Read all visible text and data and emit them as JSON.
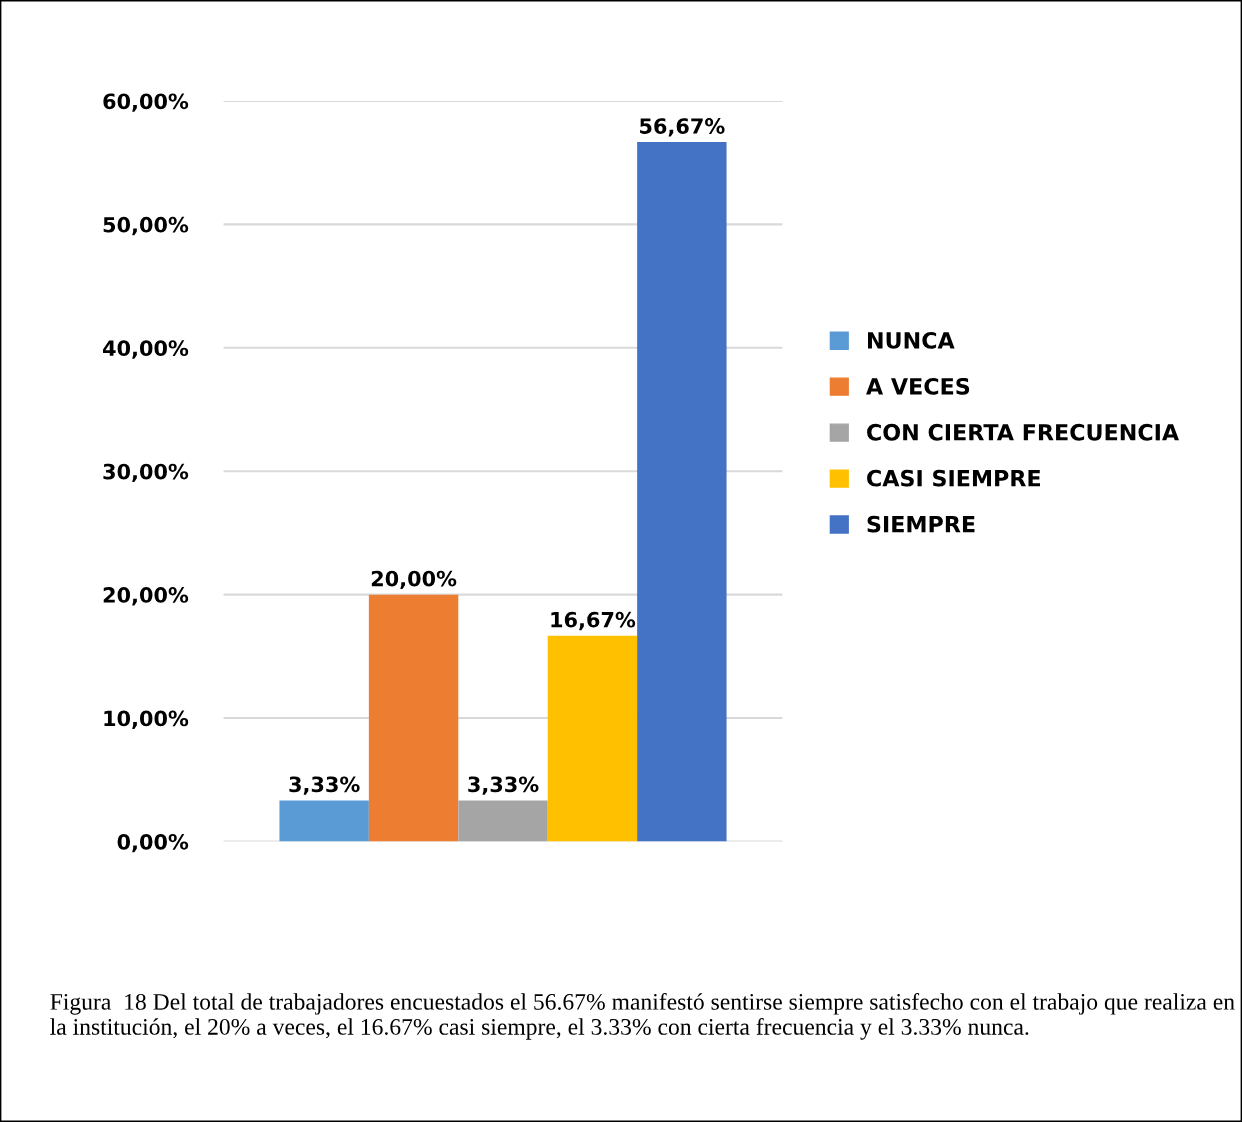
{
  "chart_data": {
    "type": "bar",
    "categories": [
      null
    ],
    "series": [
      {
        "name": "NUNCA",
        "color": "#5b9bd5",
        "values": [
          3.33
        ],
        "value_labels": [
          "3,33%"
        ]
      },
      {
        "name": "A VECES",
        "color": "#ed7d31",
        "values": [
          20
        ],
        "value_labels": [
          "20,00%"
        ]
      },
      {
        "name": "CON CIERTA FRECUENCIA",
        "color": "#a5a5a5",
        "values": [
          3.33
        ],
        "value_labels": [
          "3,33%"
        ]
      },
      {
        "name": "CASI SIEMPRE",
        "color": "#ffc000",
        "values": [
          16.67
        ],
        "value_labels": [
          "16,67%"
        ]
      },
      {
        "name": "SIEMPRE",
        "color": "#4472c4",
        "values": [
          56.67
        ],
        "value_labels": [
          "56,67%"
        ]
      }
    ],
    "ylim": [
      0,
      60
    ],
    "yticks": [
      {
        "value": 0,
        "label": "0,00%"
      },
      {
        "value": 10,
        "label": "10,00%"
      },
      {
        "value": 20,
        "label": "20,00%"
      },
      {
        "value": 30,
        "label": "30,00%"
      },
      {
        "value": 40,
        "label": "40,00%"
      },
      {
        "value": 50,
        "label": "50,00%"
      },
      {
        "value": 60,
        "label": "60,00%"
      }
    ],
    "grid": "y",
    "legend": "right",
    "annotations": [
      "Figura  18 Del total de trabajadores encuestados el 56.67% manifestó sentirse siempre satisfecho con el trabajo que realiza en la institución, el 20% a veces, el 16.67% casi siempre, el 3.33% con cierta frecuencia y el 3.33% nunca."
    ]
  }
}
